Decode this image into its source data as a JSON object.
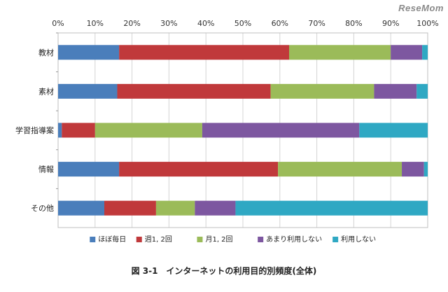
{
  "watermark": "ReseMom",
  "caption": "図 3-1　インターネットの利用目的別頻度(全体)",
  "chart_data": {
    "type": "bar",
    "orientation": "horizontal",
    "stacked": true,
    "percent": true,
    "xlim": [
      0,
      100
    ],
    "x_ticks": [
      "0%",
      "10%",
      "20%",
      "30%",
      "40%",
      "50%",
      "60%",
      "70%",
      "80%",
      "90%",
      "100%"
    ],
    "x_tick_values": [
      0,
      10,
      20,
      30,
      40,
      50,
      60,
      70,
      80,
      90,
      100
    ],
    "x_axis_position": "top",
    "grid": "vertical",
    "legend_position": "bottom",
    "categories": [
      "教材",
      "素材",
      "学習指導案",
      "情報",
      "その他"
    ],
    "series": [
      {
        "name": "ほぼ毎日",
        "color": "#4a7ebb",
        "values": [
          16.5,
          16,
          1,
          16.5,
          12.5
        ]
      },
      {
        "name": "週1, 2回",
        "color": "#c0393b",
        "values": [
          46,
          41.5,
          9,
          43,
          14
        ]
      },
      {
        "name": "月1, 2回",
        "color": "#9bbb59",
        "values": [
          27.5,
          28,
          29,
          33.5,
          10.5
        ]
      },
      {
        "name": "あまり利用しない",
        "color": "#7d57a0",
        "values": [
          8.5,
          11.5,
          42.5,
          6,
          11
        ]
      },
      {
        "name": "利用しない",
        "color": "#2fa8c3",
        "values": [
          1.5,
          3,
          18.5,
          1,
          52
        ]
      }
    ]
  }
}
